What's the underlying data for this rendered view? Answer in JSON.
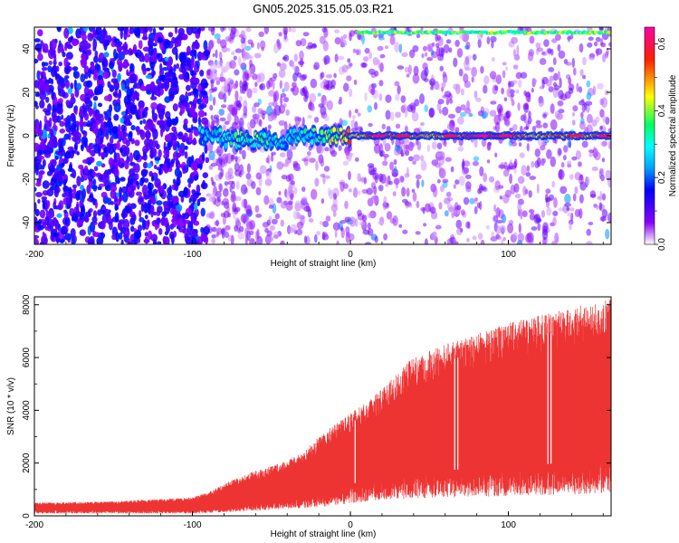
{
  "chart_data": [
    {
      "type": "heatmap",
      "title": "GN05.2025.315.05.03.R21",
      "xlabel": "Height of straight line (km)",
      "ylabel": "Frequency (Hz)",
      "xlim": [
        -200,
        165
      ],
      "ylim": [
        -50,
        50
      ],
      "x_ticks": [
        "-200",
        "-100",
        "0",
        "100"
      ],
      "x_tick_values": [
        -200,
        -100,
        0,
        100
      ],
      "y_ticks": [
        "-40",
        "-20",
        "0",
        "20",
        "40"
      ],
      "y_tick_values": [
        -40,
        -20,
        0,
        20,
        40
      ],
      "colorbar": {
        "label": "Normalized spectral amplitude",
        "range": [
          0,
          0.65
        ],
        "ticks": [
          "0.0",
          "0.2",
          "0.4",
          "0.6"
        ],
        "tick_values": [
          0,
          0.2,
          0.4,
          0.6
        ],
        "colors": [
          "#ffffff",
          "#7a00ff",
          "#0000ff",
          "#00ffff",
          "#00ff66",
          "#ffff00",
          "#ff0000",
          "#ff00aa"
        ]
      },
      "ridge": {
        "description_frequency_hz": 0,
        "x_start": -95,
        "x_end": 165,
        "amplitude_points": [
          [
            -95,
            0.25
          ],
          [
            -80,
            0.3
          ],
          [
            -60,
            0.35
          ],
          [
            -40,
            0.25
          ],
          [
            -20,
            0.35
          ],
          [
            0,
            0.5
          ],
          [
            20,
            0.55
          ],
          [
            40,
            0.5
          ],
          [
            60,
            0.5
          ],
          [
            80,
            0.6
          ],
          [
            100,
            0.55
          ],
          [
            120,
            0.5
          ],
          [
            140,
            0.5
          ],
          [
            160,
            0.5
          ]
        ]
      },
      "top_edge_band": {
        "frequency_hz": 48,
        "x_start": 5,
        "x_end": 165
      }
    },
    {
      "type": "area",
      "title": "",
      "xlabel": "Height of straight line (km)",
      "ylabel": "SNR (10 * v/v)",
      "xlim": [
        -200,
        165
      ],
      "ylim": [
        0,
        8300
      ],
      "x_ticks": [
        "-200",
        "-100",
        "0",
        "100"
      ],
      "x_tick_values": [
        -200,
        -100,
        0,
        100
      ],
      "y_ticks": [
        "0",
        "2000",
        "4000",
        "6000",
        "8000"
      ],
      "y_tick_values": [
        0,
        2000,
        4000,
        6000,
        8000
      ],
      "color": "#ee3333",
      "envelope": {
        "x": [
          -200,
          -150,
          -100,
          -90,
          -80,
          -70,
          -60,
          -50,
          -40,
          -30,
          -20,
          -10,
          0,
          10,
          20,
          30,
          40,
          60,
          80,
          100,
          120,
          140,
          165
        ],
        "upper": [
          500,
          550,
          700,
          900,
          1200,
          1500,
          1700,
          1900,
          2100,
          2400,
          3000,
          3500,
          3900,
          4300,
          4800,
          5500,
          6000,
          6500,
          6900,
          7300,
          7600,
          7900,
          8200
        ],
        "lower": [
          150,
          150,
          150,
          180,
          220,
          280,
          320,
          380,
          420,
          480,
          550,
          650,
          800,
          900,
          1000,
          1050,
          1100,
          1150,
          1200,
          1250,
          1300,
          1350,
          1450
        ]
      },
      "gaps_x": [
        3,
        66,
        68,
        125,
        127
      ]
    }
  ]
}
